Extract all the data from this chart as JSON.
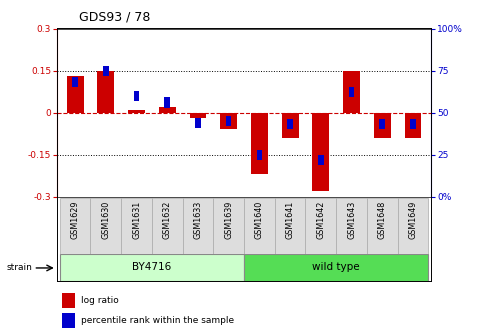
{
  "title": "GDS93 / 78",
  "samples": [
    "GSM1629",
    "GSM1630",
    "GSM1631",
    "GSM1632",
    "GSM1633",
    "GSM1639",
    "GSM1640",
    "GSM1641",
    "GSM1642",
    "GSM1643",
    "GSM1648",
    "GSM1649"
  ],
  "log_ratio": [
    0.13,
    0.15,
    0.01,
    0.02,
    -0.02,
    -0.06,
    -0.22,
    -0.09,
    -0.28,
    0.15,
    -0.09,
    -0.09
  ],
  "percentile_rank": [
    68,
    75,
    60,
    56,
    44,
    45,
    25,
    43,
    22,
    62,
    43,
    43
  ],
  "bar_color_red": "#cc0000",
  "bar_color_blue": "#0000cc",
  "zero_line_color": "#cc0000",
  "ylim": [
    -0.3,
    0.3
  ],
  "y2lim": [
    0,
    100
  ],
  "yticks": [
    -0.3,
    -0.15,
    0.0,
    0.15,
    0.3
  ],
  "ytick_labels": [
    "-0.3",
    "-0.15",
    "0",
    "0.15",
    "0.3"
  ],
  "y2ticks": [
    0,
    25,
    50,
    75,
    100
  ],
  "y2tick_labels": [
    "0%",
    "25",
    "50",
    "75",
    "100%"
  ],
  "dotted_lines": [
    -0.15,
    0.15
  ],
  "group_BY4716_label": "BY4716",
  "group_wildtype_label": "wild type",
  "color_BY4716": "#ccffcc",
  "color_wildtype": "#55dd55",
  "strain_label": "strain",
  "legend_red_label": "log ratio",
  "legend_blue_label": "percentile rank within the sample",
  "bar_width": 0.55,
  "percentile_bar_width": 0.18,
  "sample_cell_color": "#dddddd",
  "sample_cell_edge": "#aaaaaa"
}
